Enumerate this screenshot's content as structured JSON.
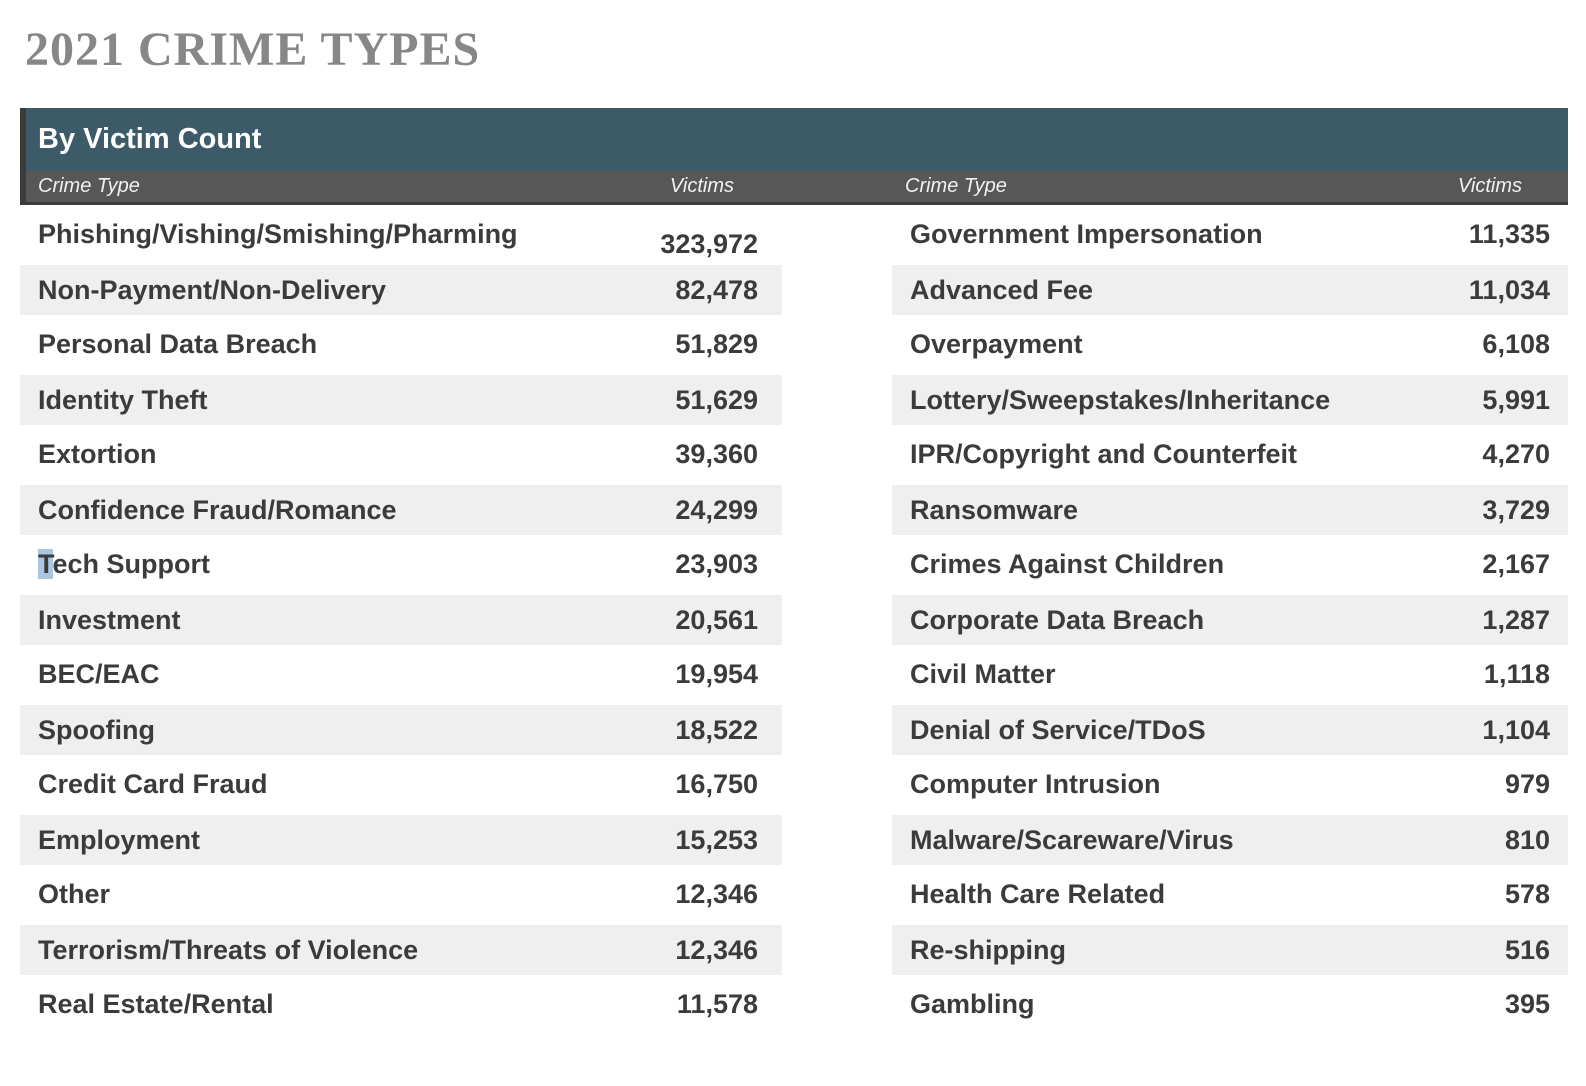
{
  "page_title": "2021 CRIME TYPES",
  "table": {
    "title": "By Victim Count",
    "columns": [
      "Crime Type",
      "Victims",
      "Crime Type",
      "Victims"
    ],
    "left_rows": [
      {
        "label": "Phishing/Vishing/Smishing/Pharming",
        "value": "323,972",
        "value_offset": true
      },
      {
        "label": "Non-Payment/Non-Delivery",
        "value": "82,478"
      },
      {
        "label": "Personal Data Breach",
        "value": "51,829"
      },
      {
        "label": "Identity Theft",
        "value": "51,629"
      },
      {
        "label": "Extortion",
        "value": "39,360"
      },
      {
        "label": "Confidence Fraud/Romance",
        "value": "24,299"
      },
      {
        "label": "Tech Support",
        "value": "23,903",
        "selected_prefix": "T"
      },
      {
        "label": "Investment",
        "value": "20,561"
      },
      {
        "label": "BEC/EAC",
        "value": "19,954"
      },
      {
        "label": "Spoofing",
        "value": "18,522"
      },
      {
        "label": "Credit Card Fraud",
        "value": "16,750"
      },
      {
        "label": "Employment",
        "value": "15,253"
      },
      {
        "label": "Other",
        "value": "12,346"
      },
      {
        "label": "Terrorism/Threats of Violence",
        "value": "12,346"
      },
      {
        "label": "Real Estate/Rental",
        "value": "11,578"
      }
    ],
    "right_rows": [
      {
        "label": "Government Impersonation",
        "value": "11,335"
      },
      {
        "label": "Advanced Fee",
        "value": "11,034"
      },
      {
        "label": "Overpayment",
        "value": "6,108"
      },
      {
        "label": "Lottery/Sweepstakes/Inheritance",
        "value": "5,991"
      },
      {
        "label": "IPR/Copyright and Counterfeit",
        "value": "4,270"
      },
      {
        "label": "Ransomware",
        "value": "3,729"
      },
      {
        "label": "Crimes Against Children",
        "value": "2,167"
      },
      {
        "label": "Corporate Data Breach",
        "value": "1,287"
      },
      {
        "label": "Civil Matter",
        "value": "1,118"
      },
      {
        "label": "Denial of Service/TDoS",
        "value": "1,104"
      },
      {
        "label": "Computer Intrusion",
        "value": "979"
      },
      {
        "label": "Malware/Scareware/Virus",
        "value": "810"
      },
      {
        "label": "Health Care Related",
        "value": "578"
      },
      {
        "label": "Re-shipping",
        "value": "516"
      },
      {
        "label": "Gambling",
        "value": "395"
      }
    ]
  },
  "colors": {
    "header_teal": "#3C5A68",
    "subheader_gray": "#575757",
    "dark_border": "#3B3B3B",
    "row_shade": "#F0EFEF",
    "row_text": "#3B3B3B",
    "title_gray": "#878787",
    "selection_blue": "#A9C7E3"
  }
}
